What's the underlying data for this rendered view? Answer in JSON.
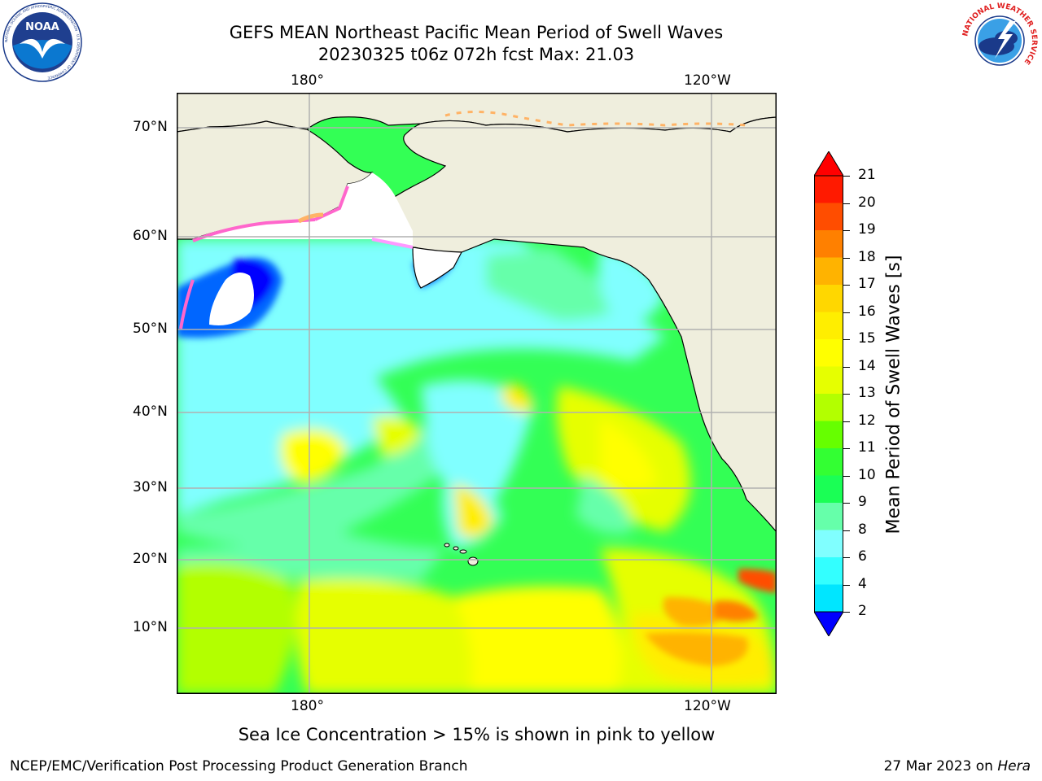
{
  "title_line1": "GEFS MEAN Northeast Pacific Mean Period of Swell Waves",
  "title_line2": "20230325 t06z 072h fcst   Max: 21.03",
  "logos": {
    "left": {
      "icon": "noaa-logo",
      "text": "NOAA",
      "ring_text": "NATIONAL OCEANIC AND ATMOSPHERIC ADMINISTRATION · U.S. DEPARTMENT OF COMMERCE"
    },
    "right": {
      "icon": "nws-logo",
      "ring_text": "NATIONAL WEATHER SERVICE"
    }
  },
  "map": {
    "lon_labels_top": [
      "180°",
      "120°W"
    ],
    "lon_labels_bottom": [
      "180°",
      "120°W"
    ],
    "lat_labels": [
      "70°N",
      "60°N",
      "50°N",
      "40°N",
      "30°N",
      "20°N",
      "10°N"
    ],
    "colors": {
      "land": "#efeedd",
      "ocean_base": "#66ff99",
      "grid": "#b0b0b0"
    }
  },
  "colorbar": {
    "label": "Mean Period of Swell Waves [s]",
    "ticks": [
      "21",
      "20",
      "19",
      "18",
      "17",
      "16",
      "15",
      "14",
      "13",
      "12",
      "11",
      "10",
      "9",
      "8",
      "6",
      "4",
      "2"
    ],
    "colors": [
      "#ff1a00",
      "#ff4d00",
      "#ff8000",
      "#ffb300",
      "#ffd700",
      "#ffee00",
      "#ffff00",
      "#e6ff00",
      "#b3ff00",
      "#66ff00",
      "#33ff33",
      "#1aff55",
      "#66ffaa",
      "#80ffff",
      "#33ffff",
      "#00e6ff",
      "#0066ff"
    ],
    "extend_top": "#ff0000",
    "extend_bottom": "#0000ff"
  },
  "note": "Sea Ice Concentration > 15% is shown in pink to yellow",
  "footer_left": "NCEP/EMC/Verification Post Processing Product Generation Branch",
  "footer_right_prefix": "27 Mar 2023 on ",
  "footer_right_host": "Hera"
}
